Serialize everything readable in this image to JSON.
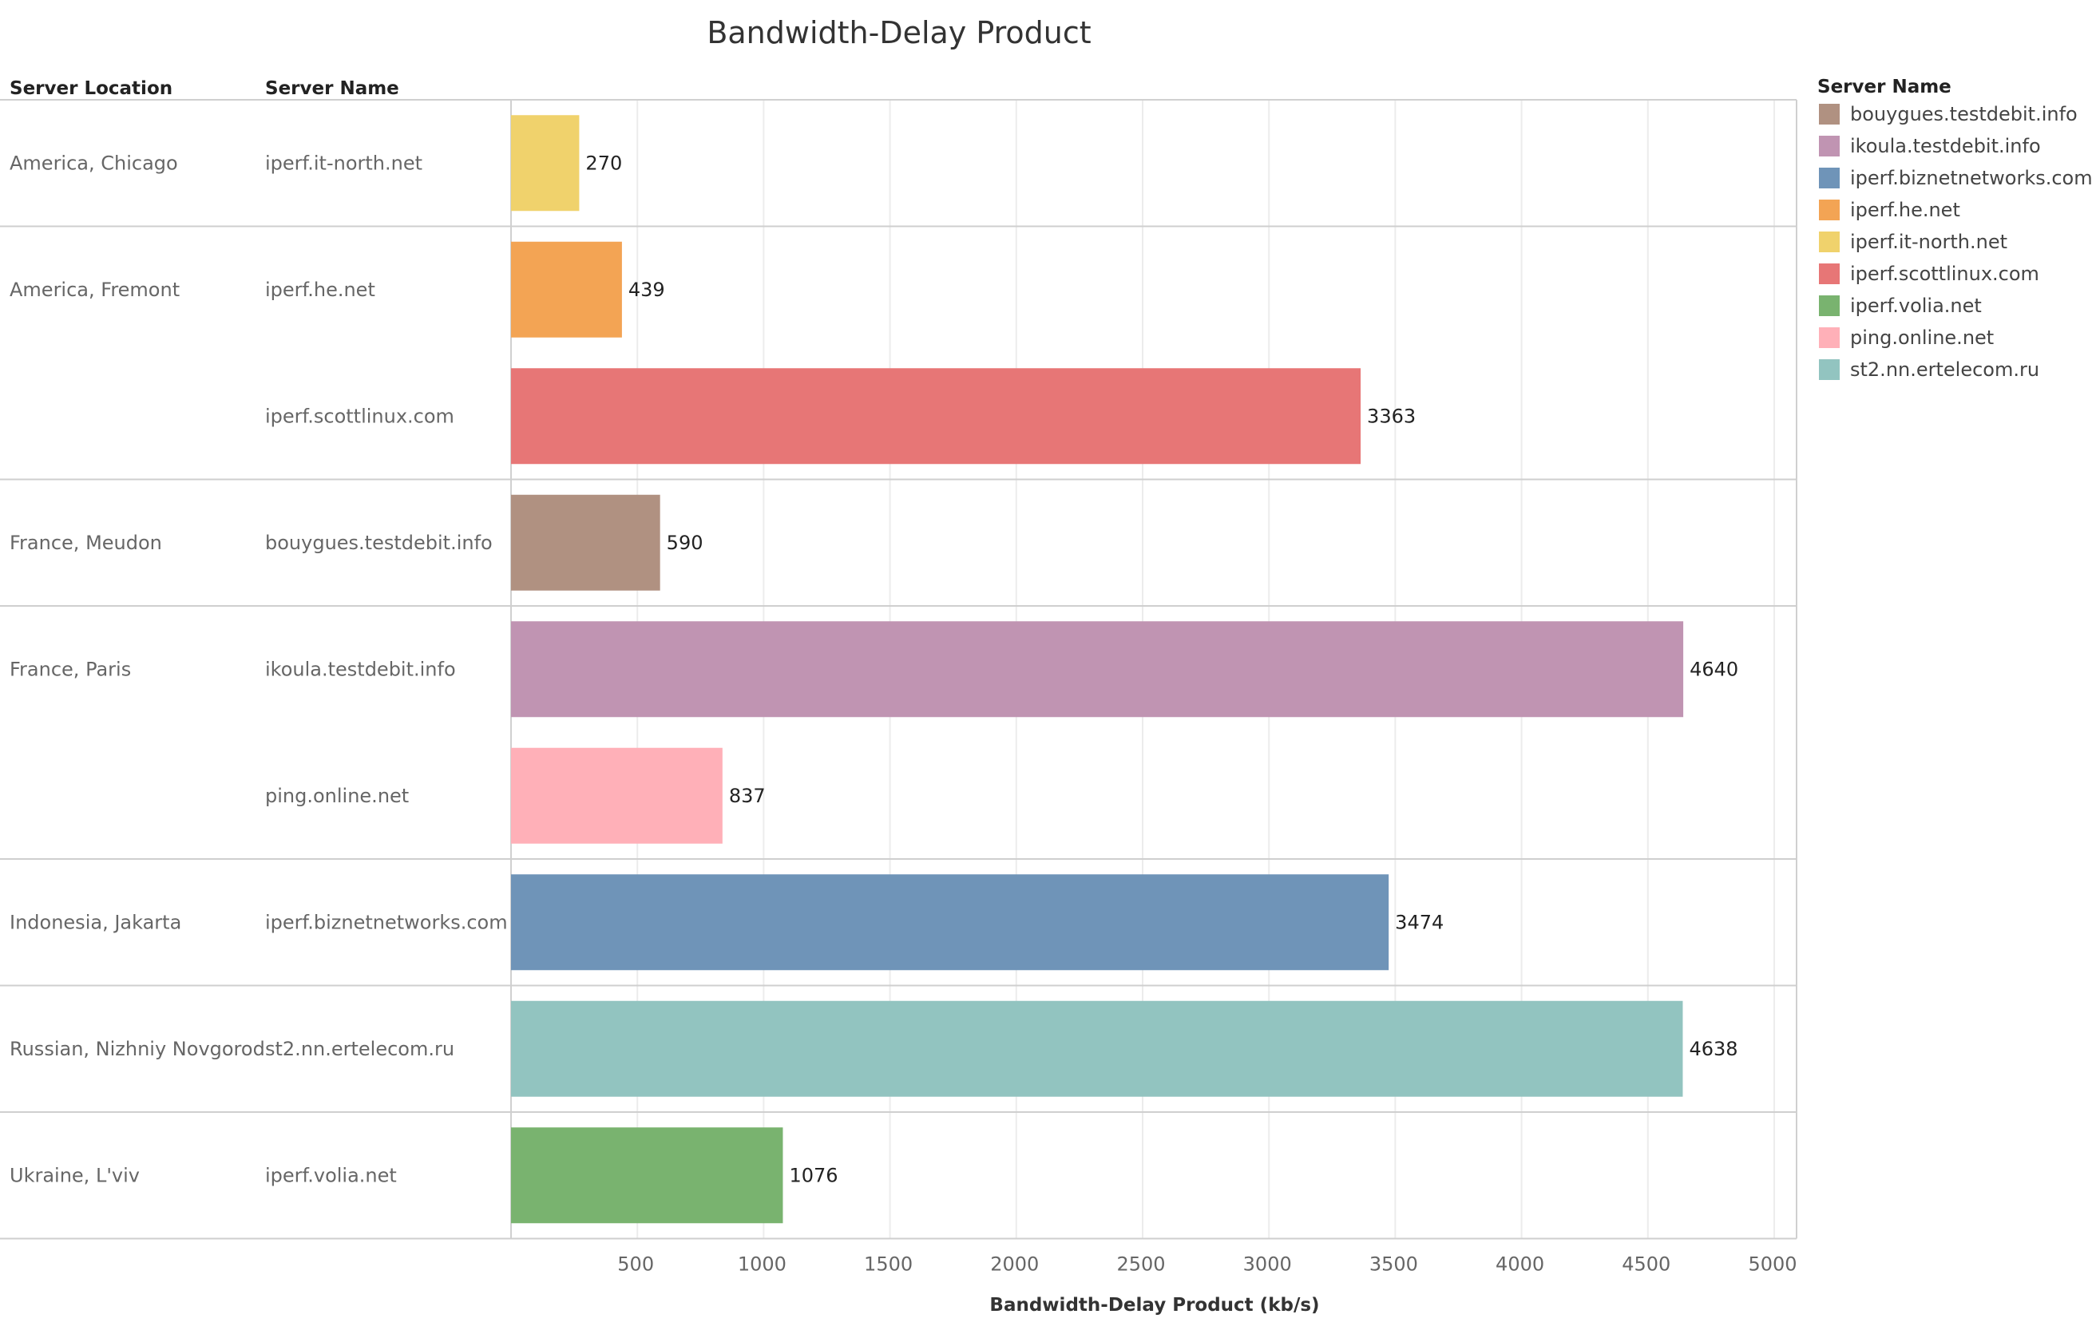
{
  "chart_data": {
    "type": "bar",
    "orientation": "horizontal",
    "title": "Bandwidth-Delay Product",
    "row_headers": [
      "Server Location",
      "Server Name"
    ],
    "xlabel": "Bandwidth-Delay Product (kb/s)",
    "xlim": [
      0,
      5000
    ],
    "xticks": [
      500,
      1000,
      1500,
      2000,
      2500,
      3000,
      3500,
      4000,
      4500,
      5000
    ],
    "grid": true,
    "legend_title": "Server Name",
    "legend_position": "right",
    "groups": [
      {
        "location": "America, Chicago",
        "rows": [
          {
            "server": "iperf.it-north.net",
            "value": 270
          }
        ]
      },
      {
        "location": "America, Fremont",
        "rows": [
          {
            "server": "iperf.he.net",
            "value": 439
          },
          {
            "server": "iperf.scottlinux.com",
            "value": 3363
          }
        ]
      },
      {
        "location": "France, Meudon",
        "rows": [
          {
            "server": "bouygues.testdebit.info",
            "value": 590
          }
        ]
      },
      {
        "location": "France, Paris",
        "rows": [
          {
            "server": "ikoula.testdebit.info",
            "value": 4640
          },
          {
            "server": "ping.online.net",
            "value": 837
          }
        ]
      },
      {
        "location": "Indonesia, Jakarta",
        "rows": [
          {
            "server": "iperf.biznetnetworks.com",
            "value": 3474
          }
        ]
      },
      {
        "location": "Russian, Nizhniy Novgorod",
        "rows": [
          {
            "server": "st2.nn.ertelecom.ru",
            "value": 4638
          }
        ]
      },
      {
        "location": "Ukraine, L'viv",
        "rows": [
          {
            "server": "iperf.volia.net",
            "value": 1076
          }
        ]
      }
    ],
    "legend": [
      {
        "name": "bouygues.testdebit.info",
        "color": "#b09181"
      },
      {
        "name": "ikoula.testdebit.info",
        "color": "#c094b2"
      },
      {
        "name": "iperf.biznetnetworks.com",
        "color": "#6f94b8"
      },
      {
        "name": "iperf.he.net",
        "color": "#f3a454"
      },
      {
        "name": "iperf.it-north.net",
        "color": "#f0d26c"
      },
      {
        "name": "iperf.scottlinux.com",
        "color": "#e77676"
      },
      {
        "name": "iperf.volia.net",
        "color": "#79b36f"
      },
      {
        "name": "ping.online.net",
        "color": "#ffb0b8"
      },
      {
        "name": "st2.nn.ertelecom.ru",
        "color": "#92c4c0"
      }
    ]
  }
}
